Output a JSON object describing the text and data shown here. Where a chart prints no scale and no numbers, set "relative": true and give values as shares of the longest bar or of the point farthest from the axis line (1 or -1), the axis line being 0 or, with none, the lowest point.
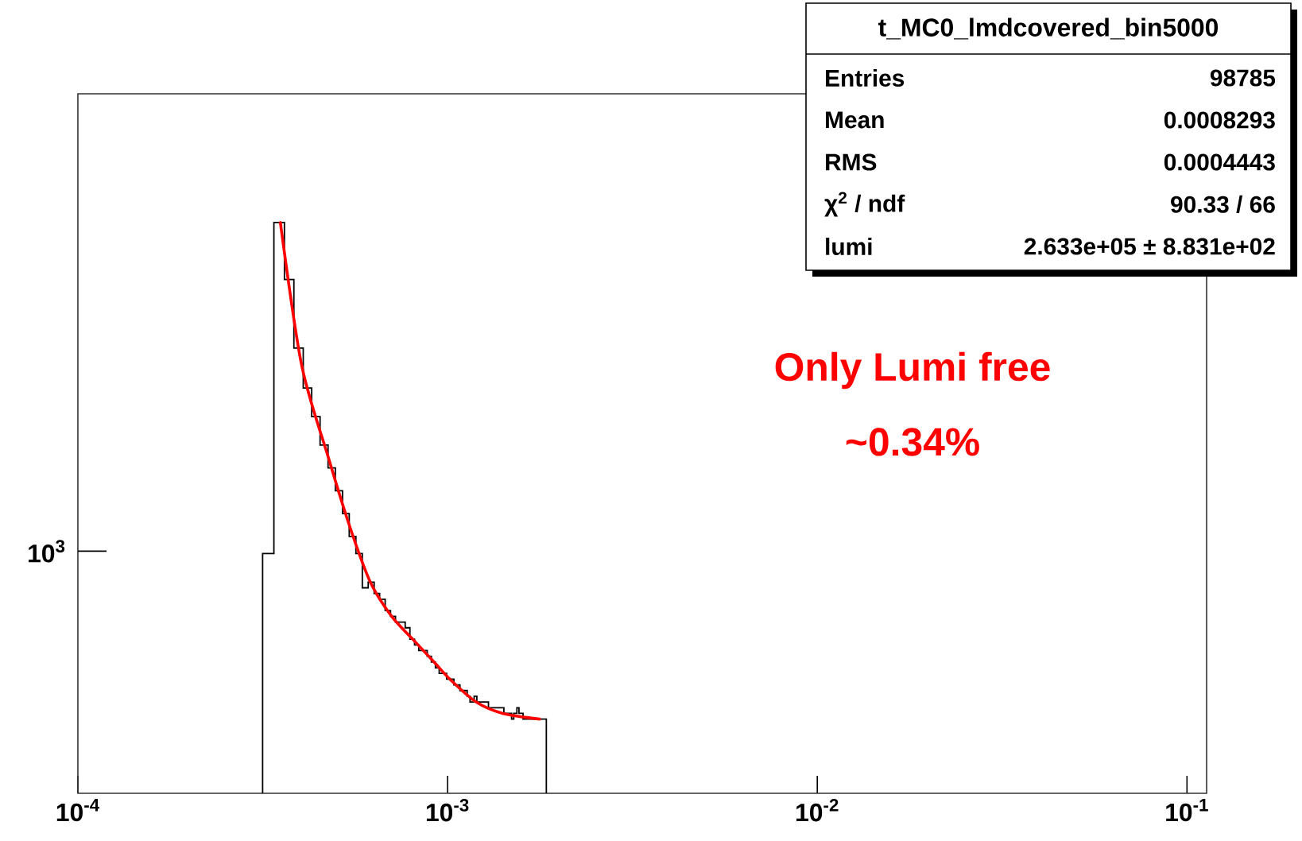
{
  "chart_data": {
    "type": "histogram",
    "log": "x",
    "grid": false,
    "relative": true,
    "xlim": [
      0.0001,
      0.113
    ],
    "xticks": [
      {
        "value": 0.0001,
        "label": "10$^{-4}$"
      },
      {
        "value": 0.001,
        "label": "10$^{-3}$"
      },
      {
        "value": 0.01,
        "label": "10$^{-2}$"
      },
      {
        "value": 0.1,
        "label": "10$^{-1}$"
      }
    ],
    "series": [
      {
        "color": "#000000",
        "bins": [
          0.000316,
          0.000339,
          0.000362,
          0.000384,
          0.000407,
          0.000429,
          0.000452,
          0.000475,
          0.000497,
          0.00052,
          0.000542,
          0.000565,
          0.000588,
          0.00061,
          0.000633,
          0.000655,
          0.000678,
          0.000701,
          0.000723,
          0.000746,
          0.000768,
          0.000791,
          0.000814,
          0.000836,
          0.000859,
          0.000881,
          0.000904,
          0.000927,
          0.000949,
          0.000972,
          0.000994,
          0.00102,
          0.00104,
          0.00106,
          0.00108,
          0.00111,
          0.00113,
          0.00115,
          0.00118,
          0.0012,
          0.00122,
          0.00124,
          0.00127,
          0.00129,
          0.00131,
          0.00133,
          0.00136,
          0.00138,
          0.0014,
          0.00142,
          0.00145,
          0.00147,
          0.00149,
          0.00151,
          0.00154,
          0.00156,
          0.00158,
          0.0016,
          0.00163,
          0.00165,
          0.00167,
          0.0017,
          0.00172,
          0.00174,
          0.00176,
          0.00179,
          0.00181,
          0.00183,
          0.00185
        ],
        "values": [
          0.42,
          1,
          0.9,
          0.78,
          0.71,
          0.66,
          0.61,
          0.57,
          0.53,
          0.49,
          0.45,
          0.42,
          0.36,
          0.37,
          0.35,
          0.34,
          0.32,
          0.31,
          0.3,
          0.3,
          0.29,
          0.27,
          0.26,
          0.25,
          0.25,
          0.24,
          0.23,
          0.22,
          0.21,
          0.21,
          0.2,
          0.2,
          0.19,
          0.19,
          0.18,
          0.18,
          0.17,
          0.16,
          0.17,
          0.16,
          0.16,
          0.16,
          0.16,
          0.15,
          0.15,
          0.15,
          0.15,
          0.15,
          0.15,
          0.14,
          0.14,
          0.14,
          0.13,
          0.14,
          0.15,
          0.14,
          0.14,
          0.13,
          0.13,
          0.13,
          0.13,
          0.13,
          0.13,
          0.13,
          0.13,
          0.13,
          0.13,
          0.13
        ]
      },
      {
        "type": "line",
        "color": "#ff0000",
        "x": [
          0.000353,
          0.000403,
          0.000475,
          0.000542,
          0.000618,
          0.000706,
          0.000805,
          0.000919,
          0.001014,
          0.001194,
          0.001409,
          0.001774
        ],
        "values": [
          1.0,
          0.75,
          0.59,
          0.47,
          0.37,
          0.31,
          0.27,
          0.23,
          0.2,
          0.16,
          0.14,
          0.13
        ]
      }
    ],
    "annotations": [
      "10$^{3}$",
      "t_MC0_lmdcovered_bin5000",
      "Entries",
      "98785",
      "Mean",
      "0.0008293",
      "RMS",
      "0.0004443",
      "χ$^{2}$ / ndf",
      "90.33 / 66",
      "lumi",
      "2.633e+05 ± 8.831e+02",
      "Only Lumi free",
      "~0.34%"
    ]
  }
}
